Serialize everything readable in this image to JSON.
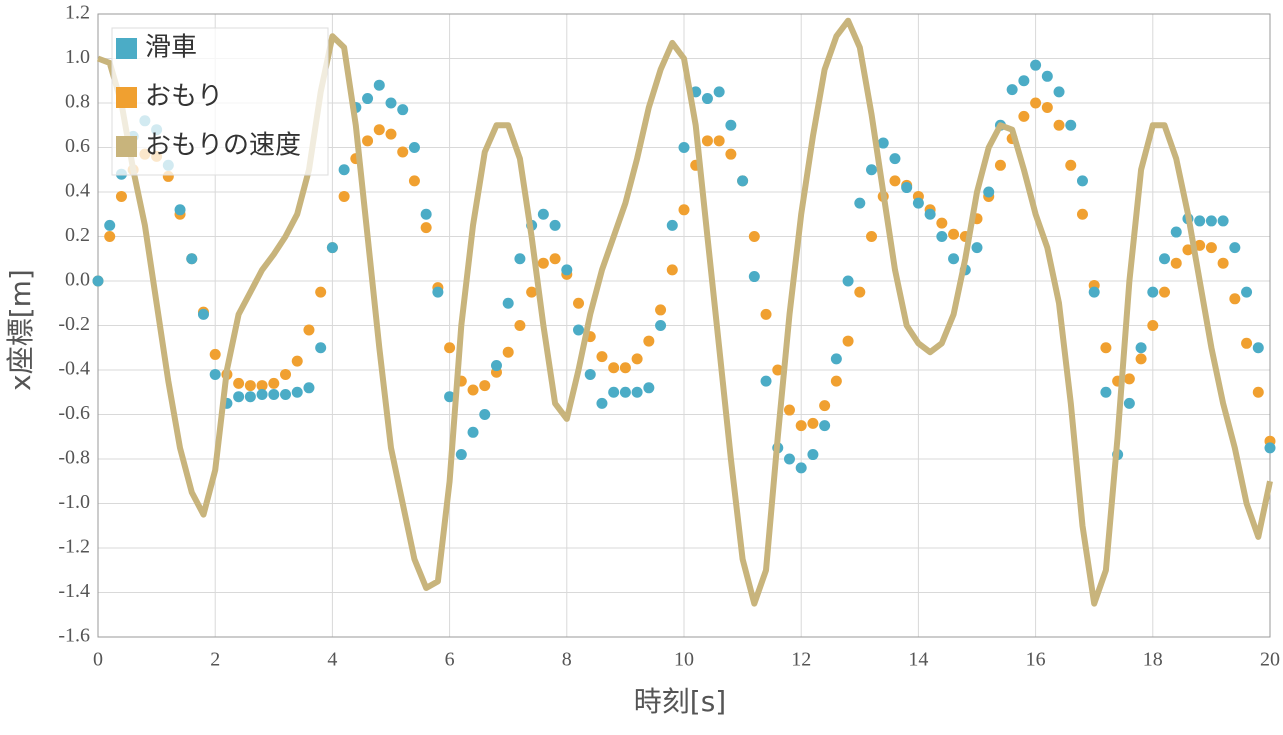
{
  "chart_data": {
    "type": "scatter",
    "xlabel": "時刻[s]",
    "ylabel": "x座標[m]",
    "x": [
      0,
      0.2,
      0.4,
      0.6,
      0.8,
      1,
      1.2,
      1.4,
      1.6,
      1.8,
      2,
      2.2,
      2.4,
      2.6,
      2.8,
      3,
      3.2,
      3.4,
      3.6,
      3.8,
      4,
      4.2,
      4.4,
      4.6,
      4.8,
      5,
      5.2,
      5.4,
      5.6,
      5.8,
      6,
      6.2,
      6.4,
      6.6,
      6.8,
      7,
      7.2,
      7.4,
      7.6,
      7.8,
      8,
      8.2,
      8.4,
      8.6,
      8.8,
      9,
      9.2,
      9.4,
      9.6,
      9.8,
      10,
      10.2,
      10.4,
      10.6,
      10.8,
      11,
      11.2,
      11.4,
      11.6,
      11.8,
      12,
      12.2,
      12.4,
      12.6,
      12.8,
      13,
      13.2,
      13.4,
      13.6,
      13.8,
      14,
      14.2,
      14.4,
      14.6,
      14.8,
      15,
      15.2,
      15.4,
      15.6,
      15.8,
      16,
      16.2,
      16.4,
      16.6,
      16.8,
      17,
      17.2,
      17.4,
      17.6,
      17.8,
      18,
      18.2,
      18.4,
      18.6,
      18.8,
      19,
      19.2,
      19.4,
      19.6,
      19.8,
      20
    ],
    "series": [
      {
        "name": "滑車",
        "color": "#4bacc6",
        "mode": "markers",
        "values": [
          0,
          0.25,
          0.48,
          0.65,
          0.72,
          0.68,
          0.52,
          0.32,
          0.1,
          -0.15,
          -0.42,
          -0.55,
          -0.52,
          -0.52,
          -0.51,
          -0.51,
          -0.51,
          -0.5,
          -0.48,
          -0.3,
          0.15,
          0.5,
          0.78,
          0.82,
          0.88,
          0.8,
          0.77,
          0.6,
          0.3,
          -0.05,
          -0.52,
          -0.78,
          -0.68,
          -0.6,
          -0.38,
          -0.1,
          0.1,
          0.25,
          0.3,
          0.25,
          0.05,
          -0.22,
          -0.42,
          -0.55,
          -0.5,
          -0.5,
          -0.5,
          -0.48,
          -0.2,
          0.25,
          0.6,
          0.85,
          0.82,
          0.85,
          0.7,
          0.45,
          0.02,
          -0.45,
          -0.75,
          -0.8,
          -0.84,
          -0.78,
          -0.65,
          -0.35,
          0,
          0.35,
          0.5,
          0.62,
          0.55,
          0.42,
          0.35,
          0.3,
          0.2,
          0.1,
          0.05,
          0.15,
          0.4,
          0.7,
          0.86,
          0.9,
          0.97,
          0.92,
          0.85,
          0.7,
          0.45,
          -0.05,
          -0.5,
          -0.78,
          -0.55,
          -0.3,
          -0.05,
          0.1,
          0.22,
          0.28,
          0.27,
          0.27,
          0.27,
          0.15,
          -0.05,
          -0.3,
          -0.75
        ]
      },
      {
        "name": "おもり",
        "color": "#f0a030",
        "mode": "markers",
        "values": [
          0,
          0.2,
          0.38,
          0.5,
          0.57,
          0.56,
          0.47,
          0.3,
          0.1,
          -0.14,
          -0.33,
          -0.42,
          -0.46,
          -0.47,
          -0.47,
          -0.46,
          -0.42,
          -0.36,
          -0.22,
          -0.05,
          0.15,
          0.38,
          0.55,
          0.63,
          0.68,
          0.66,
          0.58,
          0.45,
          0.24,
          -0.03,
          -0.3,
          -0.45,
          -0.49,
          -0.47,
          -0.41,
          -0.32,
          -0.2,
          -0.05,
          0.08,
          0.1,
          0.03,
          -0.1,
          -0.25,
          -0.34,
          -0.39,
          -0.39,
          -0.35,
          -0.27,
          -0.13,
          0.05,
          0.32,
          0.52,
          0.63,
          0.63,
          0.57,
          0.45,
          0.2,
          -0.15,
          -0.4,
          -0.58,
          -0.65,
          -0.64,
          -0.56,
          -0.45,
          -0.27,
          -0.05,
          0.2,
          0.38,
          0.45,
          0.43,
          0.38,
          0.32,
          0.26,
          0.21,
          0.2,
          0.28,
          0.38,
          0.52,
          0.64,
          0.74,
          0.8,
          0.78,
          0.7,
          0.52,
          0.3,
          -0.02,
          -0.3,
          -0.45,
          -0.44,
          -0.35,
          -0.2,
          -0.05,
          0.08,
          0.14,
          0.16,
          0.15,
          0.08,
          -0.08,
          -0.28,
          -0.5,
          -0.72
        ]
      },
      {
        "name": "おもりの速度",
        "color": "#c8b47c",
        "mode": "line",
        "values": [
          1,
          0.98,
          0.8,
          0.5,
          0.25,
          -0.1,
          -0.45,
          -0.75,
          -0.95,
          -1.05,
          -0.85,
          -0.4,
          -0.15,
          -0.05,
          0.05,
          0.12,
          0.2,
          0.3,
          0.5,
          0.85,
          1.1,
          1.05,
          0.7,
          0.2,
          -0.3,
          -0.75,
          -1,
          -1.25,
          -1.38,
          -1.35,
          -0.9,
          -0.2,
          0.25,
          0.58,
          0.7,
          0.7,
          0.55,
          0.2,
          -0.2,
          -0.55,
          -0.62,
          -0.4,
          -0.15,
          0.05,
          0.2,
          0.35,
          0.55,
          0.78,
          0.95,
          1.07,
          1,
          0.7,
          0.2,
          -0.3,
          -0.8,
          -1.25,
          -1.45,
          -1.3,
          -0.7,
          -0.15,
          0.3,
          0.65,
          0.95,
          1.1,
          1.17,
          1.05,
          0.75,
          0.4,
          0.05,
          -0.2,
          -0.28,
          -0.32,
          -0.28,
          -0.15,
          0.1,
          0.4,
          0.6,
          0.7,
          0.68,
          0.5,
          0.3,
          0.15,
          -0.1,
          -0.55,
          -1.1,
          -1.45,
          -1.3,
          -0.7,
          0,
          0.5,
          0.7,
          0.7,
          0.55,
          0.3,
          0,
          -0.3,
          -0.55,
          -0.75,
          -1,
          -1.15,
          -0.9
        ]
      }
    ],
    "xlim": [
      0,
      20
    ],
    "xticks": [
      0,
      2,
      4,
      6,
      8,
      10,
      12,
      14,
      16,
      18,
      20
    ],
    "ylim": [
      -1.6,
      1.2
    ],
    "yticks": [
      1.2,
      {
        "value": 1,
        "label": "1.0"
      },
      0.8,
      0.6,
      0.4,
      0.2,
      {
        "value": 0,
        "label": "0.0"
      },
      -0.2,
      -0.4,
      -0.6,
      -0.8,
      {
        "value": -1,
        "label": "-1.0"
      },
      -1.2,
      -1.4,
      -1.6
    ],
    "grid": true,
    "legend": "upper left"
  }
}
